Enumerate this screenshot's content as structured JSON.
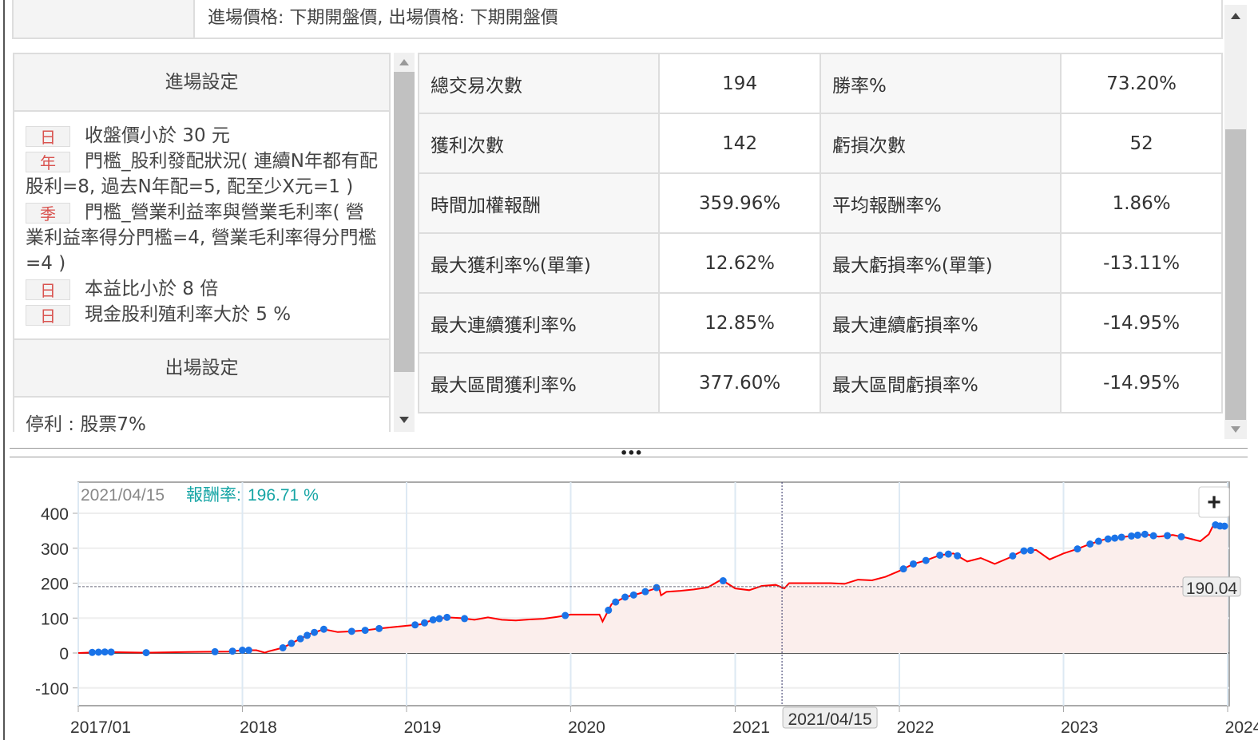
{
  "top_row": {
    "price_setting": "進場價格: 下期開盤價, 出場價格: 下期開盤價"
  },
  "entry": {
    "title": "進場設定",
    "conditions": [
      {
        "tag": "日",
        "text": "收盤價小於 30 元"
      },
      {
        "tag": "年",
        "text": "門檻_股利發配狀況( 連續N年都有配股利=8, 過去N年配=5, 配至少X元=1 )"
      },
      {
        "tag": "季",
        "text": "門檻_營業利益率與營業毛利率( 營業利益率得分門檻=4, 營業毛利率得分門檻=4 )"
      },
      {
        "tag": "日",
        "text": "本益比小於 8 倍"
      },
      {
        "tag": "日",
        "text": "現金股利殖利率大於 5 %"
      }
    ]
  },
  "exit": {
    "title": "出場設定",
    "text": "停利 : 股票7%"
  },
  "stats": [
    [
      "總交易次數",
      "194",
      "勝率%",
      "73.20%"
    ],
    [
      "獲利次數",
      "142",
      "虧損次數",
      "52"
    ],
    [
      "時間加權報酬",
      "359.96%",
      "平均報酬率%",
      "1.86%"
    ],
    [
      "最大獲利率%(單筆)",
      "12.62%",
      "最大虧損率%(單筆)",
      "-13.11%"
    ],
    [
      "最大連續獲利率%",
      "12.85%",
      "最大連續虧損率%",
      "-14.95%"
    ],
    [
      "最大區間獲利率%",
      "377.60%",
      "最大區間虧損率%",
      "-14.95%"
    ]
  ],
  "stats_red": {
    "0-3": true,
    "2-1": true
  },
  "colors": {
    "line": "#ff0000",
    "marker": "#1a73e8",
    "fill": "#fbeeec",
    "tooltip": "#16a5a5",
    "red_value": "#e8212a"
  },
  "splitter": {
    "handle": "•••"
  },
  "chart_data": {
    "type": "line",
    "tooltip": {
      "date": "2021/04/15",
      "label": "報酬率:",
      "value": "196.71 %"
    },
    "crosshair": {
      "date": "2021-04-15",
      "value": 190.04,
      "value_label": "190.04",
      "date_label": "2021/04/15"
    },
    "zoom_button": "+",
    "ylim": [
      -150,
      460
    ],
    "yticks": [
      400,
      300,
      200,
      100,
      0,
      -100
    ],
    "xticks": [
      {
        "date": "2017-01-01",
        "label": "2017/01"
      },
      {
        "date": "2018-01-01",
        "label": "2018"
      },
      {
        "date": "2019-01-01",
        "label": "2019"
      },
      {
        "date": "2020-01-01",
        "label": "2020"
      },
      {
        "date": "2021-01-01",
        "label": "2021"
      },
      {
        "date": "2022-01-01",
        "label": "2022"
      },
      {
        "date": "2023-01-01",
        "label": "2023"
      },
      {
        "date": "2024-01-01",
        "label": "2024"
      }
    ],
    "series": [
      [
        "2017-01-01",
        0
      ],
      [
        "2017-03-01",
        3
      ],
      [
        "2017-06-01",
        1
      ],
      [
        "2017-09-01",
        3
      ],
      [
        "2017-12-01",
        4
      ],
      [
        "2018-01-01",
        8
      ],
      [
        "2018-02-01",
        8
      ],
      [
        "2018-02-20",
        1
      ],
      [
        "2018-03-01",
        5
      ],
      [
        "2018-04-01",
        15
      ],
      [
        "2018-05-01",
        35
      ],
      [
        "2018-06-01",
        55
      ],
      [
        "2018-07-01",
        68
      ],
      [
        "2018-08-01",
        60
      ],
      [
        "2018-09-01",
        62
      ],
      [
        "2018-10-01",
        65
      ],
      [
        "2018-11-01",
        70
      ],
      [
        "2018-12-01",
        74
      ],
      [
        "2019-01-01",
        78
      ],
      [
        "2019-02-01",
        82
      ],
      [
        "2019-03-01",
        95
      ],
      [
        "2019-04-01",
        102
      ],
      [
        "2019-05-01",
        100
      ],
      [
        "2019-06-01",
        95
      ],
      [
        "2019-07-01",
        102
      ],
      [
        "2019-08-01",
        95
      ],
      [
        "2019-09-01",
        93
      ],
      [
        "2019-10-01",
        96
      ],
      [
        "2019-11-01",
        98
      ],
      [
        "2019-12-01",
        103
      ],
      [
        "2020-01-01",
        110
      ],
      [
        "2020-03-05",
        110
      ],
      [
        "2020-03-12",
        90
      ],
      [
        "2020-03-20",
        110
      ],
      [
        "2020-04-01",
        140
      ],
      [
        "2020-05-01",
        160
      ],
      [
        "2020-06-01",
        170
      ],
      [
        "2020-07-01",
        182
      ],
      [
        "2020-07-15",
        190
      ],
      [
        "2020-07-20",
        165
      ],
      [
        "2020-08-01",
        175
      ],
      [
        "2020-09-01",
        178
      ],
      [
        "2020-10-01",
        182
      ],
      [
        "2020-11-01",
        188
      ],
      [
        "2020-12-01",
        210
      ],
      [
        "2021-01-01",
        185
      ],
      [
        "2021-02-01",
        180
      ],
      [
        "2021-03-01",
        192
      ],
      [
        "2021-04-01",
        195
      ],
      [
        "2021-04-20",
        185
      ],
      [
        "2021-05-01",
        200
      ],
      [
        "2021-08-01",
        200
      ],
      [
        "2021-09-01",
        198
      ],
      [
        "2021-10-01",
        210
      ],
      [
        "2021-11-01",
        208
      ],
      [
        "2021-12-01",
        218
      ],
      [
        "2022-01-01",
        235
      ],
      [
        "2022-02-01",
        255
      ],
      [
        "2022-03-01",
        265
      ],
      [
        "2022-04-01",
        280
      ],
      [
        "2022-05-01",
        285
      ],
      [
        "2022-06-01",
        262
      ],
      [
        "2022-07-01",
        272
      ],
      [
        "2022-08-01",
        255
      ],
      [
        "2022-09-01",
        272
      ],
      [
        "2022-10-01",
        292
      ],
      [
        "2022-11-01",
        295
      ],
      [
        "2022-12-01",
        268
      ],
      [
        "2023-01-01",
        285
      ],
      [
        "2023-02-01",
        298
      ],
      [
        "2023-03-01",
        312
      ],
      [
        "2023-04-01",
        325
      ],
      [
        "2023-05-01",
        330
      ],
      [
        "2023-06-01",
        335
      ],
      [
        "2023-07-01",
        340
      ],
      [
        "2023-08-01",
        333
      ],
      [
        "2023-09-01",
        338
      ],
      [
        "2023-10-01",
        330
      ],
      [
        "2023-11-01",
        320
      ],
      [
        "2023-11-20",
        340
      ],
      [
        "2023-12-01",
        368
      ],
      [
        "2023-12-20",
        362
      ],
      [
        "2024-01-01",
        365
      ]
    ],
    "markers": [
      "2017-02-01",
      "2017-02-15",
      "2017-03-01",
      "2017-03-15",
      "2017-06-01",
      "2017-11-01",
      "2017-12-10",
      "2018-01-01",
      "2018-01-15",
      "2018-04-01",
      "2018-04-20",
      "2018-05-10",
      "2018-05-25",
      "2018-06-10",
      "2018-07-01",
      "2018-09-01",
      "2018-10-01",
      "2018-11-01",
      "2019-01-20",
      "2019-02-10",
      "2019-03-01",
      "2019-03-15",
      "2019-04-01",
      "2019-05-10",
      "2019-12-20",
      "2020-03-25",
      "2020-04-10",
      "2020-05-01",
      "2020-05-20",
      "2020-06-15",
      "2020-07-10",
      "2020-12-05",
      "2022-01-10",
      "2022-02-01",
      "2022-03-01",
      "2022-04-01",
      "2022-04-20",
      "2022-05-10",
      "2022-09-10",
      "2022-10-05",
      "2022-10-20",
      "2023-02-01",
      "2023-03-01",
      "2023-03-20",
      "2023-04-10",
      "2023-04-25",
      "2023-05-10",
      "2023-06-01",
      "2023-06-15",
      "2023-07-01",
      "2023-07-20",
      "2023-08-20",
      "2023-09-20",
      "2023-12-05",
      "2023-12-15",
      "2023-12-25"
    ]
  }
}
